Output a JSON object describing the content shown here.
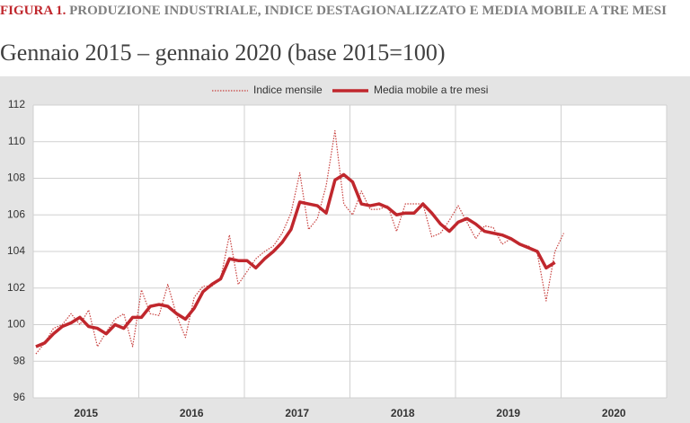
{
  "chart_data": {
    "type": "line",
    "figure_label": "FIGURA 1.",
    "title": "PRODUZIONE INDUSTRIALE, INDICE DESTAGIONALIZZATO E MEDIA MOBILE A TRE MESI",
    "subtitle": "Gennaio 2015 – gennaio 2020 (base 2015=100)",
    "categories": [
      null,
      null,
      null,
      null,
      null,
      null,
      null,
      null,
      null,
      null,
      null,
      null,
      null,
      null,
      null,
      null,
      null,
      null,
      null,
      null,
      null,
      null,
      null,
      null,
      null,
      null,
      null,
      null,
      null,
      null,
      null,
      null,
      null,
      null,
      null,
      null,
      null,
      null,
      null,
      null,
      null,
      null,
      null,
      null,
      null,
      null,
      null,
      null,
      null,
      null,
      null,
      null,
      null,
      null,
      null,
      null,
      null,
      null,
      null,
      null,
      null
    ],
    "xticks": [
      "2015",
      "2016",
      "2017",
      "2018",
      "2019",
      "2020"
    ],
    "series": [
      {
        "name": "Indice mensile",
        "color": "#c8413f",
        "style": "dotted",
        "values": [
          98.4,
          99.0,
          99.8,
          100.0,
          100.6,
          100.0,
          100.8,
          98.8,
          99.6,
          100.3,
          100.6,
          98.8,
          101.9,
          100.6,
          100.5,
          102.2,
          100.5,
          99.3,
          101.5,
          102.1,
          102.1,
          102.5,
          104.9,
          102.2,
          102.9,
          103.6,
          104.0,
          104.3,
          105.0,
          106.1,
          108.3,
          105.2,
          105.8,
          107.6,
          110.6,
          106.6,
          106.0,
          107.3,
          106.3,
          106.3,
          106.5,
          105.1,
          106.6,
          106.6,
          106.6,
          104.8,
          105.0,
          105.7,
          106.5,
          105.6,
          104.7,
          105.4,
          105.3,
          104.4,
          104.7,
          104.4,
          104.3,
          103.9,
          101.3,
          104.0,
          105.0
        ]
      },
      {
        "name": "Media mobile a tre mesi",
        "color": "#c0272d",
        "style": "solid",
        "values": [
          98.8,
          99.0,
          99.5,
          99.9,
          100.1,
          100.4,
          99.9,
          99.8,
          99.5,
          100.0,
          99.8,
          100.4,
          100.4,
          101.0,
          101.1,
          101.0,
          100.6,
          100.3,
          100.9,
          101.8,
          102.2,
          102.5,
          103.6,
          103.5,
          103.5,
          103.1,
          103.6,
          104.0,
          104.5,
          105.2,
          106.7,
          106.6,
          106.5,
          106.1,
          107.9,
          108.2,
          107.8,
          106.6,
          106.5,
          106.6,
          106.4,
          106.0,
          106.1,
          106.1,
          106.6,
          106.1,
          105.5,
          105.1,
          105.6,
          105.8,
          105.5,
          105.1,
          105.0,
          104.9,
          104.7,
          104.4,
          104.2,
          104.0,
          103.1,
          103.4,
          null
        ]
      }
    ],
    "ylim": [
      96,
      112
    ],
    "yticks": [
      96,
      98,
      100,
      102,
      104,
      106,
      108,
      110,
      112
    ],
    "grid": true,
    "legend": "top"
  }
}
